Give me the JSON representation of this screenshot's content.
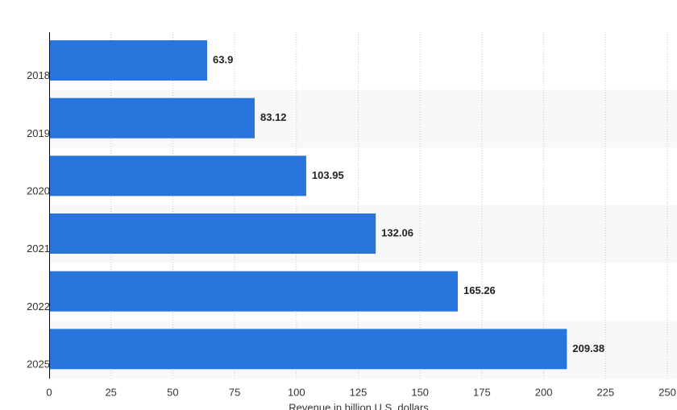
{
  "chart_data": {
    "type": "hbar",
    "categories": [
      "2018",
      "2019",
      "2020",
      "2021",
      "2022",
      "2025"
    ],
    "values": [
      63.9,
      83.12,
      103.95,
      132.06,
      165.26,
      209.38
    ],
    "color": "#2876dd",
    "xlabel": "Revenue in billion U.S. dollars",
    "xlim": [
      0,
      250
    ],
    "xticks": [
      0,
      25,
      50,
      75,
      100,
      125,
      150,
      175,
      200,
      225,
      250
    ],
    "grid": true
  }
}
